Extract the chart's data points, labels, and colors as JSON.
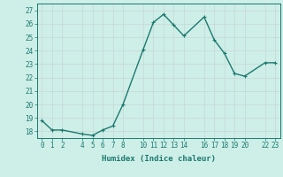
{
  "x": [
    0,
    1,
    2,
    4,
    5,
    6,
    7,
    8,
    10,
    11,
    12,
    13,
    14,
    16,
    17,
    18,
    19,
    20,
    22,
    23
  ],
  "y": [
    18.8,
    18.1,
    18.1,
    17.8,
    17.7,
    18.1,
    18.4,
    20.0,
    24.1,
    26.1,
    26.7,
    25.9,
    25.1,
    26.5,
    24.8,
    23.8,
    22.3,
    22.1,
    23.1,
    23.1
  ],
  "line_color": "#1a7a6e",
  "marker_color": "#1a7a6e",
  "bg_color": "#ceeee8",
  "grid_color": "#c8d8d4",
  "xlabel": "Humidex (Indice chaleur)",
  "xlim": [
    -0.5,
    23.5
  ],
  "ylim": [
    17.5,
    27.5
  ],
  "yticks": [
    18,
    19,
    20,
    21,
    22,
    23,
    24,
    25,
    26,
    27
  ],
  "xticks": [
    0,
    1,
    2,
    4,
    5,
    6,
    7,
    8,
    10,
    11,
    12,
    13,
    14,
    16,
    17,
    18,
    19,
    20,
    22,
    23
  ],
  "xtick_labels": [
    "0",
    "1",
    "2",
    "4",
    "5",
    "6",
    "7",
    "8",
    "10",
    "11",
    "12",
    "13",
    "14",
    "16",
    "17",
    "18",
    "19",
    "20",
    "22",
    "23"
  ],
  "tick_color": "#1a7a6e",
  "label_fontsize": 6.5,
  "tick_fontsize": 5.5,
  "marker_size": 2.5,
  "line_width": 1.0
}
